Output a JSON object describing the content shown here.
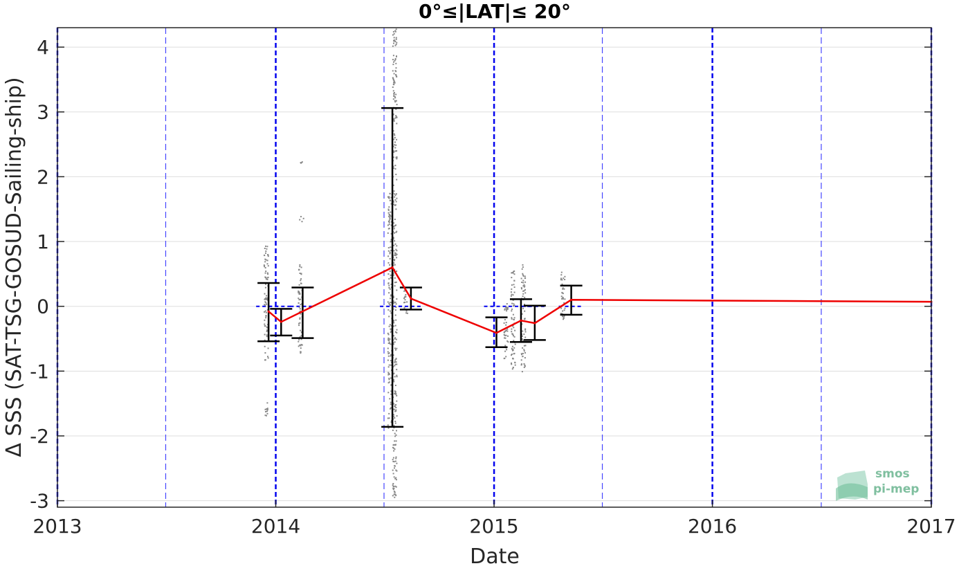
{
  "chart_data": {
    "type": "scatter",
    "title": "0°≤|LAT|≤ 20°",
    "xlabel": "Date",
    "ylabel": "Δ SSS (SAT-TSG-GOSUD-Sailing-ship)",
    "xlim": [
      "2013-01-01",
      "2017-01-01"
    ],
    "ylim": [
      -3.1,
      4.3
    ],
    "x_ticks": [
      "2013",
      "2014",
      "2015",
      "2016",
      "2017"
    ],
    "y_ticks": [
      "-3",
      "-2",
      "-1",
      "0",
      "1",
      "2",
      "3",
      "4"
    ],
    "grid": true,
    "year_lines": [
      "2013-01-01",
      "2014-01-01",
      "2015-01-01",
      "2016-01-01",
      "2017-01-01"
    ],
    "half_year_lines": [
      "2013-07-01",
      "2014-07-01",
      "2015-07-01",
      "2016-07-01"
    ],
    "colors": {
      "mean_line": "#ee0000",
      "error_bars": "#000000",
      "scatter": "#888888",
      "year_lines": "#0000ee",
      "half_year_lines": "#4444ff",
      "grid": "#dddddd",
      "logo": "#7fbf9f"
    },
    "series": [
      {
        "type": "line",
        "x": [
          "2013-12-20",
          "2014-01-10",
          "2014-07-15",
          "2014-08-15",
          "2015-01-05",
          "2015-02-15",
          "2015-03-10",
          "2015-05-10",
          "2017-01-01"
        ],
        "y": [
          -0.08,
          -0.24,
          0.6,
          0.12,
          -0.41,
          -0.22,
          -0.26,
          0.1,
          0.07
        ]
      },
      {
        "type": "errorbar",
        "x": [
          "2013-12-20",
          "2014-01-10",
          "2014-02-15",
          "2014-07-15",
          "2014-08-15",
          "2015-01-05",
          "2015-02-15",
          "2015-03-10",
          "2015-05-10"
        ],
        "mean": [
          -0.08,
          -0.24,
          -0.1,
          0.6,
          0.12,
          -0.41,
          -0.22,
          -0.26,
          0.1
        ],
        "upper": [
          0.36,
          -0.04,
          0.29,
          3.06,
          0.29,
          -0.17,
          0.11,
          0.01,
          0.32
        ],
        "lower": [
          -0.54,
          -0.45,
          -0.49,
          -1.86,
          -0.05,
          -0.63,
          -0.55,
          -0.52,
          -0.13
        ]
      },
      {
        "type": "scatter",
        "clusters": [
          {
            "x": "2013-12-15",
            "y_min": -0.9,
            "y_max": 0.95
          },
          {
            "x": "2013-12-14",
            "y_min": -1.7,
            "y_max": -1.45
          },
          {
            "x": "2014-02-10",
            "y_min": -0.75,
            "y_max": 0.7
          },
          {
            "x": "2014-02-12",
            "y_min": 1.3,
            "y_max": 1.4
          },
          {
            "x": "2014-02-13",
            "y_min": 2.2,
            "y_max": 2.25
          },
          {
            "x": "2014-07-10",
            "y_min": -1.9,
            "y_max": 1.75
          },
          {
            "x": "2014-07-18",
            "y_min": -3.0,
            "y_max": 4.3
          },
          {
            "x": "2014-08-05",
            "y_min": -0.1,
            "y_max": 0.3
          },
          {
            "x": "2015-01-20",
            "y_min": -0.8,
            "y_max": 0.1
          },
          {
            "x": "2015-02-01",
            "y_min": -1.0,
            "y_max": 0.6
          },
          {
            "x": "2015-02-18",
            "y_min": -1.0,
            "y_max": 0.65
          },
          {
            "x": "2015-04-25",
            "y_min": -0.3,
            "y_max": 0.55
          }
        ]
      }
    ]
  },
  "logo": {
    "line1": "smos",
    "line2": "pi-mep"
  }
}
